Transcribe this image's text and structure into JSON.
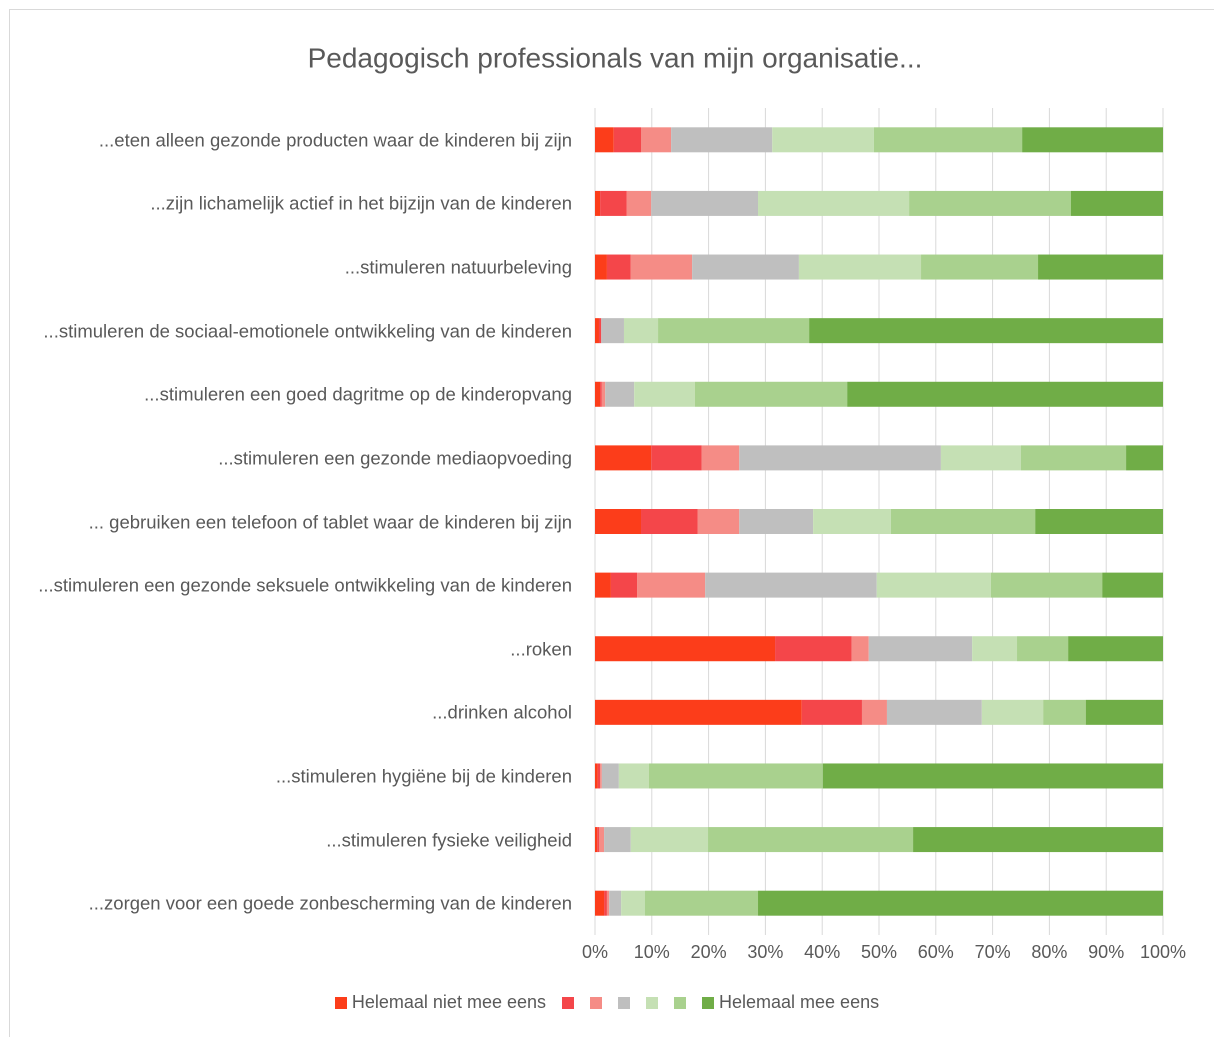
{
  "chart_data": {
    "type": "stacked_bar_horizontal",
    "title": "Pedagogisch professionals van mijn organisatie...",
    "categories": [
      "...eten alleen gezonde producten waar de kinderen bij zijn",
      "...zijn lichamelijk actief in het bijzijn van de kinderen",
      "...stimuleren natuurbeleving",
      "...stimuleren de sociaal-emotionele ontwikkeling van de kinderen",
      "...stimuleren een goed dagritme op de kinderopvang",
      "...stimuleren een gezonde mediaopvoeding",
      "... gebruiken een telefoon of tablet waar de kinderen bij zijn",
      "...stimuleren een gezonde seksuele ontwikkeling van de kinderen",
      "...roken",
      "...drinken alcohol",
      "...stimuleren hygiëne bij de kinderen",
      "...stimuleren fysieke veiligheid",
      "...zorgen voor een goede zonbescherming van de kinderen"
    ],
    "series": [
      {
        "name": "Helemaal niet mee eens",
        "color": "#fc3d1a",
        "values": [
          3.3,
          0.9,
          2.1,
          0.7,
          0.9,
          9.9,
          8.1,
          2.8,
          31.7,
          36.4,
          0.5,
          0.4,
          1.6
        ]
      },
      {
        "name": null,
        "color": "#f4464a",
        "values": [
          4.8,
          4.7,
          4.2,
          0.4,
          0.3,
          8.9,
          10.0,
          4.6,
          13.5,
          10.6,
          0.4,
          0.3,
          0.5
        ]
      },
      {
        "name": null,
        "color": "#f58c86",
        "values": [
          5.3,
          4.3,
          10.8,
          0,
          0.6,
          6.6,
          7.3,
          12.0,
          3.0,
          4.4,
          0.3,
          0.9,
          0.4
        ]
      },
      {
        "name": null,
        "color": "#bfbfbf",
        "values": [
          17.8,
          18.8,
          18.8,
          4.0,
          5.1,
          35.5,
          13.0,
          30.2,
          18.2,
          16.7,
          3.0,
          4.7,
          2.1
        ]
      },
      {
        "name": null,
        "color": "#c5e0b4",
        "values": [
          17.9,
          26.6,
          21.5,
          6.0,
          10.7,
          14.1,
          13.7,
          20.1,
          7.9,
          10.8,
          5.3,
          13.6,
          4.2
        ]
      },
      {
        "name": null,
        "color": "#a9d18e",
        "values": [
          26.1,
          28.5,
          20.6,
          26.6,
          26.8,
          18.5,
          25.4,
          19.6,
          9.0,
          7.5,
          30.6,
          36.1,
          19.9
        ]
      },
      {
        "name": "Helemaal mee eens",
        "color": "#70ad47",
        "values": [
          24.8,
          16.2,
          22.0,
          62.3,
          55.6,
          6.5,
          22.5,
          10.7,
          16.7,
          13.6,
          59.9,
          44.0,
          71.3
        ]
      }
    ],
    "xlim": [
      0,
      100
    ],
    "xticks": [
      {
        "value": 0,
        "label": "0%"
      },
      {
        "value": 10,
        "label": "10%"
      },
      {
        "value": 20,
        "label": "20%"
      },
      {
        "value": 30,
        "label": "30%"
      },
      {
        "value": 40,
        "label": "40%"
      },
      {
        "value": 50,
        "label": "50%"
      },
      {
        "value": 60,
        "label": "60%"
      },
      {
        "value": 70,
        "label": "70%"
      },
      {
        "value": 80,
        "label": "80%"
      },
      {
        "value": 90,
        "label": "90%"
      },
      {
        "value": 100,
        "label": "100%"
      }
    ],
    "grid": true,
    "legend": "bottom"
  }
}
